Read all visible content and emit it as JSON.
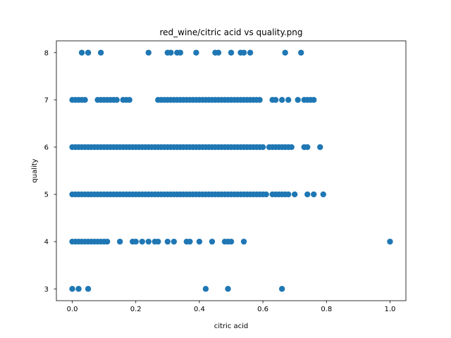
{
  "chart_data": {
    "type": "scatter",
    "title": "red_wine/citric acid vs quality.png",
    "xlabel": "citric acid",
    "ylabel": "quality",
    "xlim": [
      -0.05,
      1.05
    ],
    "ylim": [
      2.75,
      8.25
    ],
    "xticks": [
      0.0,
      0.2,
      0.4,
      0.6,
      0.8,
      1.0
    ],
    "xtick_labels": [
      "0.0",
      "0.2",
      "0.4",
      "0.6",
      "0.8",
      "1.0"
    ],
    "yticks": [
      3,
      4,
      5,
      6,
      7,
      8
    ],
    "ytick_labels": [
      "3",
      "4",
      "5",
      "6",
      "7",
      "8"
    ],
    "grid": false,
    "legend": false,
    "marker_color": "#1f77b4",
    "series": [
      {
        "points": [
          [
            0.0,
            3
          ],
          [
            0.02,
            3
          ],
          [
            0.05,
            3
          ],
          [
            0.42,
            3
          ],
          [
            0.49,
            3
          ],
          [
            0.66,
            3
          ],
          [
            0.0,
            4
          ],
          [
            0.01,
            4
          ],
          [
            0.02,
            4
          ],
          [
            0.03,
            4
          ],
          [
            0.04,
            4
          ],
          [
            0.05,
            4
          ],
          [
            0.06,
            4
          ],
          [
            0.07,
            4
          ],
          [
            0.08,
            4
          ],
          [
            0.09,
            4
          ],
          [
            0.1,
            4
          ],
          [
            0.11,
            4
          ],
          [
            0.15,
            4
          ],
          [
            0.19,
            4
          ],
          [
            0.2,
            4
          ],
          [
            0.22,
            4
          ],
          [
            0.24,
            4
          ],
          [
            0.26,
            4
          ],
          [
            0.27,
            4
          ],
          [
            0.3,
            4
          ],
          [
            0.32,
            4
          ],
          [
            0.36,
            4
          ],
          [
            0.37,
            4
          ],
          [
            0.4,
            4
          ],
          [
            0.44,
            4
          ],
          [
            0.48,
            4
          ],
          [
            0.49,
            4
          ],
          [
            0.5,
            4
          ],
          [
            0.54,
            4
          ],
          [
            1.0,
            4
          ],
          [
            0.0,
            5
          ],
          [
            0.01,
            5
          ],
          [
            0.02,
            5
          ],
          [
            0.03,
            5
          ],
          [
            0.04,
            5
          ],
          [
            0.05,
            5
          ],
          [
            0.06,
            5
          ],
          [
            0.07,
            5
          ],
          [
            0.08,
            5
          ],
          [
            0.09,
            5
          ],
          [
            0.1,
            5
          ],
          [
            0.11,
            5
          ],
          [
            0.12,
            5
          ],
          [
            0.13,
            5
          ],
          [
            0.14,
            5
          ],
          [
            0.15,
            5
          ],
          [
            0.16,
            5
          ],
          [
            0.17,
            5
          ],
          [
            0.18,
            5
          ],
          [
            0.19,
            5
          ],
          [
            0.2,
            5
          ],
          [
            0.21,
            5
          ],
          [
            0.22,
            5
          ],
          [
            0.23,
            5
          ],
          [
            0.24,
            5
          ],
          [
            0.25,
            5
          ],
          [
            0.26,
            5
          ],
          [
            0.27,
            5
          ],
          [
            0.28,
            5
          ],
          [
            0.29,
            5
          ],
          [
            0.3,
            5
          ],
          [
            0.31,
            5
          ],
          [
            0.32,
            5
          ],
          [
            0.33,
            5
          ],
          [
            0.34,
            5
          ],
          [
            0.35,
            5
          ],
          [
            0.36,
            5
          ],
          [
            0.37,
            5
          ],
          [
            0.38,
            5
          ],
          [
            0.39,
            5
          ],
          [
            0.4,
            5
          ],
          [
            0.41,
            5
          ],
          [
            0.42,
            5
          ],
          [
            0.43,
            5
          ],
          [
            0.44,
            5
          ],
          [
            0.45,
            5
          ],
          [
            0.46,
            5
          ],
          [
            0.47,
            5
          ],
          [
            0.48,
            5
          ],
          [
            0.49,
            5
          ],
          [
            0.5,
            5
          ],
          [
            0.51,
            5
          ],
          [
            0.52,
            5
          ],
          [
            0.53,
            5
          ],
          [
            0.54,
            5
          ],
          [
            0.55,
            5
          ],
          [
            0.56,
            5
          ],
          [
            0.57,
            5
          ],
          [
            0.58,
            5
          ],
          [
            0.59,
            5
          ],
          [
            0.6,
            5
          ],
          [
            0.61,
            5
          ],
          [
            0.63,
            5
          ],
          [
            0.64,
            5
          ],
          [
            0.65,
            5
          ],
          [
            0.66,
            5
          ],
          [
            0.67,
            5
          ],
          [
            0.68,
            5
          ],
          [
            0.7,
            5
          ],
          [
            0.74,
            5
          ],
          [
            0.76,
            5
          ],
          [
            0.79,
            5
          ],
          [
            0.0,
            6
          ],
          [
            0.01,
            6
          ],
          [
            0.02,
            6
          ],
          [
            0.03,
            6
          ],
          [
            0.04,
            6
          ],
          [
            0.05,
            6
          ],
          [
            0.06,
            6
          ],
          [
            0.07,
            6
          ],
          [
            0.08,
            6
          ],
          [
            0.09,
            6
          ],
          [
            0.1,
            6
          ],
          [
            0.11,
            6
          ],
          [
            0.12,
            6
          ],
          [
            0.13,
            6
          ],
          [
            0.14,
            6
          ],
          [
            0.15,
            6
          ],
          [
            0.16,
            6
          ],
          [
            0.17,
            6
          ],
          [
            0.18,
            6
          ],
          [
            0.19,
            6
          ],
          [
            0.2,
            6
          ],
          [
            0.21,
            6
          ],
          [
            0.22,
            6
          ],
          [
            0.23,
            6
          ],
          [
            0.24,
            6
          ],
          [
            0.25,
            6
          ],
          [
            0.26,
            6
          ],
          [
            0.27,
            6
          ],
          [
            0.28,
            6
          ],
          [
            0.29,
            6
          ],
          [
            0.3,
            6
          ],
          [
            0.31,
            6
          ],
          [
            0.32,
            6
          ],
          [
            0.33,
            6
          ],
          [
            0.34,
            6
          ],
          [
            0.35,
            6
          ],
          [
            0.36,
            6
          ],
          [
            0.37,
            6
          ],
          [
            0.38,
            6
          ],
          [
            0.39,
            6
          ],
          [
            0.4,
            6
          ],
          [
            0.41,
            6
          ],
          [
            0.42,
            6
          ],
          [
            0.43,
            6
          ],
          [
            0.44,
            6
          ],
          [
            0.45,
            6
          ],
          [
            0.46,
            6
          ],
          [
            0.47,
            6
          ],
          [
            0.48,
            6
          ],
          [
            0.49,
            6
          ],
          [
            0.5,
            6
          ],
          [
            0.51,
            6
          ],
          [
            0.52,
            6
          ],
          [
            0.53,
            6
          ],
          [
            0.54,
            6
          ],
          [
            0.55,
            6
          ],
          [
            0.56,
            6
          ],
          [
            0.57,
            6
          ],
          [
            0.58,
            6
          ],
          [
            0.59,
            6
          ],
          [
            0.6,
            6
          ],
          [
            0.62,
            6
          ],
          [
            0.63,
            6
          ],
          [
            0.64,
            6
          ],
          [
            0.65,
            6
          ],
          [
            0.66,
            6
          ],
          [
            0.67,
            6
          ],
          [
            0.68,
            6
          ],
          [
            0.69,
            6
          ],
          [
            0.73,
            6
          ],
          [
            0.74,
            6
          ],
          [
            0.78,
            6
          ],
          [
            0.0,
            7
          ],
          [
            0.01,
            7
          ],
          [
            0.02,
            7
          ],
          [
            0.03,
            7
          ],
          [
            0.04,
            7
          ],
          [
            0.08,
            7
          ],
          [
            0.09,
            7
          ],
          [
            0.1,
            7
          ],
          [
            0.11,
            7
          ],
          [
            0.12,
            7
          ],
          [
            0.13,
            7
          ],
          [
            0.14,
            7
          ],
          [
            0.16,
            7
          ],
          [
            0.17,
            7
          ],
          [
            0.18,
            7
          ],
          [
            0.27,
            7
          ],
          [
            0.28,
            7
          ],
          [
            0.29,
            7
          ],
          [
            0.3,
            7
          ],
          [
            0.31,
            7
          ],
          [
            0.32,
            7
          ],
          [
            0.33,
            7
          ],
          [
            0.34,
            7
          ],
          [
            0.35,
            7
          ],
          [
            0.36,
            7
          ],
          [
            0.37,
            7
          ],
          [
            0.38,
            7
          ],
          [
            0.39,
            7
          ],
          [
            0.4,
            7
          ],
          [
            0.41,
            7
          ],
          [
            0.42,
            7
          ],
          [
            0.43,
            7
          ],
          [
            0.44,
            7
          ],
          [
            0.45,
            7
          ],
          [
            0.46,
            7
          ],
          [
            0.47,
            7
          ],
          [
            0.48,
            7
          ],
          [
            0.49,
            7
          ],
          [
            0.5,
            7
          ],
          [
            0.51,
            7
          ],
          [
            0.52,
            7
          ],
          [
            0.53,
            7
          ],
          [
            0.54,
            7
          ],
          [
            0.55,
            7
          ],
          [
            0.56,
            7
          ],
          [
            0.57,
            7
          ],
          [
            0.58,
            7
          ],
          [
            0.59,
            7
          ],
          [
            0.63,
            7
          ],
          [
            0.64,
            7
          ],
          [
            0.66,
            7
          ],
          [
            0.68,
            7
          ],
          [
            0.71,
            7
          ],
          [
            0.73,
            7
          ],
          [
            0.74,
            7
          ],
          [
            0.75,
            7
          ],
          [
            0.76,
            7
          ],
          [
            0.03,
            8
          ],
          [
            0.05,
            8
          ],
          [
            0.09,
            8
          ],
          [
            0.24,
            8
          ],
          [
            0.3,
            8
          ],
          [
            0.31,
            8
          ],
          [
            0.33,
            8
          ],
          [
            0.34,
            8
          ],
          [
            0.39,
            8
          ],
          [
            0.45,
            8
          ],
          [
            0.46,
            8
          ],
          [
            0.5,
            8
          ],
          [
            0.53,
            8
          ],
          [
            0.54,
            8
          ],
          [
            0.56,
            8
          ],
          [
            0.67,
            8
          ],
          [
            0.72,
            8
          ]
        ]
      }
    ]
  }
}
